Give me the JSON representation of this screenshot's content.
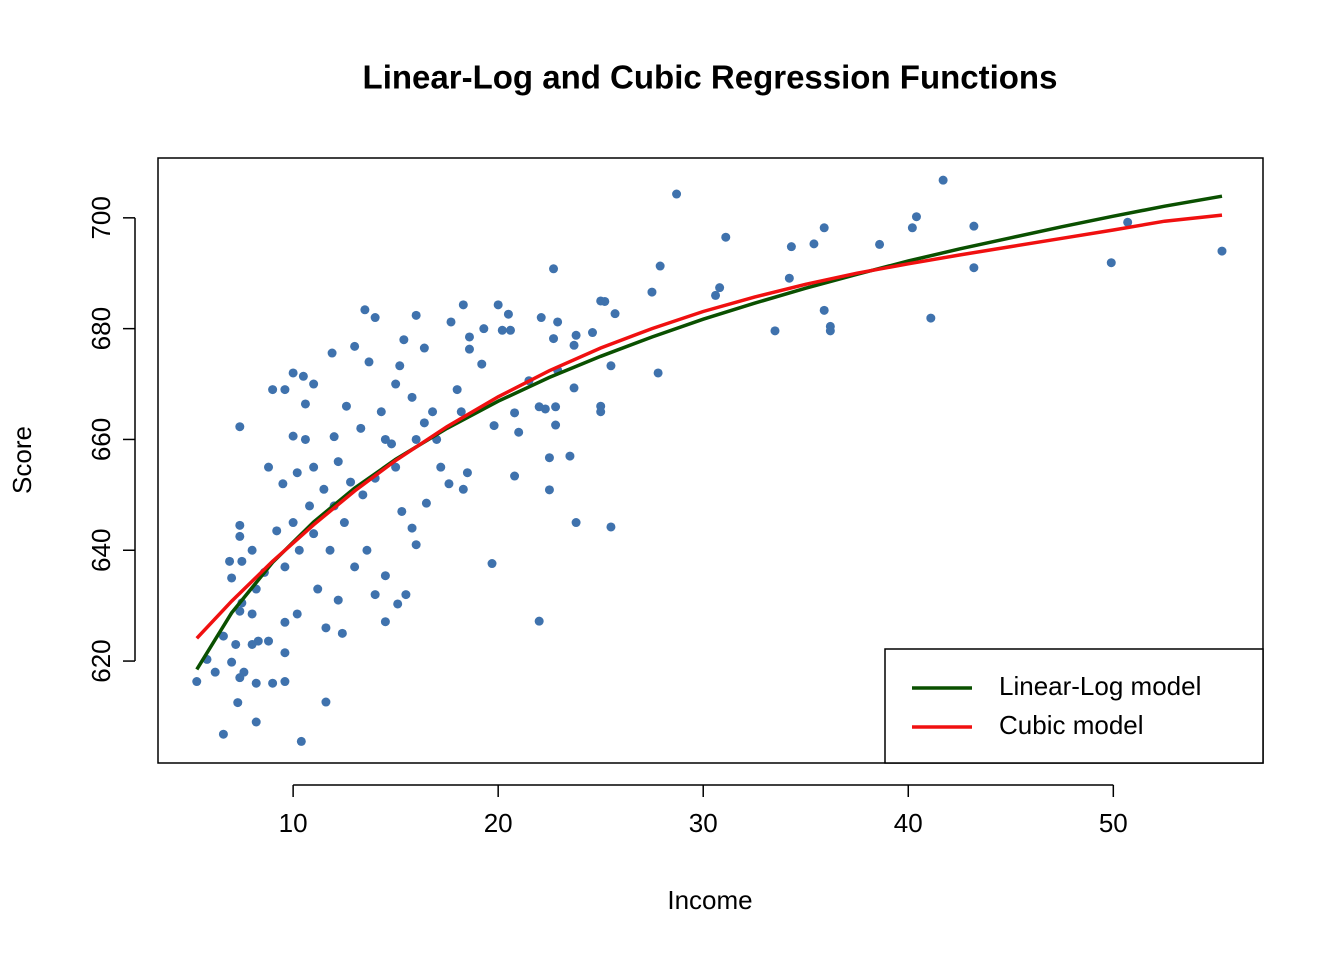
{
  "chart_data": {
    "type": "scatter",
    "title": "Linear-Log and Cubic Regression Functions",
    "xlabel": "Income",
    "ylabel": "Score",
    "color": "#3f72ad",
    "x": [
      28.7,
      41.7,
      40.4,
      40.2,
      43.2,
      43.2,
      50.7,
      49.9,
      55.3,
      41.1,
      38.6,
      35.9,
      35.4,
      34.3,
      34.2,
      35.9,
      36.2,
      36.2,
      33.5,
      31.1,
      30.8,
      30.6,
      27.9,
      27.5,
      27.8,
      25.7,
      25.2,
      25.0,
      24.6,
      23.8,
      23.7,
      23.7,
      25.5,
      25.0,
      25.0,
      25.5,
      23.8,
      23.5,
      22.8,
      22.5,
      22.5,
      22.0,
      22.7,
      22.1,
      22.7,
      22.9,
      22.0,
      22.3,
      22.8,
      22.9,
      21.5,
      21.0,
      20.8,
      20.8,
      19.7,
      20.0,
      20.2,
      20.5,
      20.6,
      19.3,
      19.8,
      18.3,
      17.7,
      18.6,
      18.6,
      19.2,
      18.0,
      18.2,
      18.3,
      18.5,
      17.6,
      16.8,
      17.0,
      16.4,
      16.0,
      16.4,
      15.4,
      15.8,
      15.2,
      14.8,
      15.0,
      15.3,
      15.8,
      16.0,
      15.5,
      15.1,
      14.5,
      14.5,
      14.0,
      13.5,
      13.7,
      13.0,
      12.6,
      13.3,
      12.2,
      12.5,
      12.0,
      11.8,
      11.6,
      11.6,
      12.4,
      11.2,
      11.0,
      11.0,
      11.0,
      11.9,
      10.5,
      10.0,
      9.6,
      9.0,
      10.6,
      10.4,
      10.0,
      10.2,
      10.0,
      10.3,
      9.6,
      9.5,
      9.2,
      8.8,
      8.6,
      8.0,
      8.2,
      8.0,
      8.3,
      8.8,
      9.0,
      9.6,
      9.6,
      10.2,
      8.2,
      8.2,
      7.6,
      7.3,
      7.4,
      6.6,
      6.6,
      6.2,
      5.8,
      5.3,
      7.0,
      7.2,
      7.4,
      7.0,
      7.5,
      7.4,
      7.4,
      7.4,
      8.0,
      6.9,
      7.5,
      9.6,
      12.2,
      13.0,
      13.6,
      14.0,
      14.5,
      14.0,
      13.4,
      12.8,
      14.3,
      15.0,
      16.5,
      17.2,
      16.0,
      12.0,
      11.5,
      10.8,
      10.6
    ],
    "values": [
      704.3,
      706.8,
      700.2,
      698.2,
      698.5,
      691.0,
      699.2,
      691.9,
      694.0,
      681.9,
      695.2,
      698.2,
      695.3,
      694.8,
      689.1,
      683.3,
      680.4,
      679.6,
      679.6,
      696.5,
      687.4,
      686.0,
      691.3,
      686.6,
      672.0,
      682.7,
      684.9,
      685.0,
      679.3,
      678.8,
      677.0,
      669.3,
      673.3,
      666.0,
      665.0,
      644.2,
      645.0,
      657.0,
      662.6,
      656.7,
      650.9,
      627.2,
      690.8,
      682.0,
      678.2,
      681.2,
      665.9,
      665.5,
      665.9,
      672.5,
      670.6,
      661.3,
      664.8,
      653.4,
      637.6,
      684.3,
      679.7,
      682.6,
      679.7,
      680.0,
      662.5,
      684.3,
      681.2,
      678.5,
      676.3,
      673.6,
      669.0,
      665.0,
      651.0,
      654.0,
      652.0,
      665.0,
      660.0,
      663.0,
      682.4,
      676.5,
      678.0,
      667.6,
      673.3,
      659.2,
      655.0,
      647.0,
      644.0,
      641.0,
      632.0,
      630.3,
      627.1,
      635.4,
      682.0,
      683.4,
      674.0,
      676.8,
      666.0,
      662.0,
      656.0,
      645.0,
      648.0,
      640.0,
      626.0,
      612.6,
      625.0,
      633.0,
      643.0,
      655.0,
      670.0,
      675.6,
      671.4,
      672.0,
      669.0,
      669.0,
      666.4,
      605.5,
      660.6,
      654.0,
      645.0,
      640.0,
      637.0,
      652.0,
      643.5,
      655.0,
      636.0,
      640.0,
      633.0,
      628.5,
      623.6,
      623.6,
      616.0,
      621.5,
      627.0,
      628.5,
      609.0,
      616.0,
      618.0,
      612.5,
      617.0,
      606.8,
      624.5,
      618.0,
      620.3,
      616.3,
      619.8,
      623.0,
      629.0,
      635.0,
      638.0,
      642.5,
      644.5,
      662.3,
      623.0,
      638.0,
      630.5,
      616.3,
      631.0,
      637.0,
      640.0,
      632.0,
      660.0,
      653.0,
      650.0,
      652.3,
      665.0,
      670.0,
      648.5,
      655.0,
      660.0,
      660.5,
      651.0,
      648.0,
      660.0
    ],
    "lines": [
      {
        "name": "Linear-Log model",
        "color": "#0a5000",
        "x": [
          5.3,
          7,
          9,
          11,
          13,
          15,
          17.5,
          20,
          22.5,
          25,
          27.5,
          30,
          32.5,
          35,
          37.5,
          40,
          42.5,
          45,
          47.5,
          50,
          52.5,
          55.3
        ],
        "values": [
          618.5,
          628.7,
          637.8,
          645.1,
          651.2,
          656.4,
          662.0,
          666.9,
          671.2,
          675.0,
          678.5,
          681.7,
          684.6,
          687.3,
          689.8,
          692.2,
          694.4,
          696.4,
          698.4,
          700.3,
          702.1,
          703.9
        ]
      },
      {
        "name": "Cubic model",
        "color": "#f01010",
        "x": [
          5.3,
          7,
          9,
          11,
          13,
          15,
          17.5,
          20,
          22.5,
          25,
          27.5,
          30,
          32.5,
          35,
          37.5,
          40,
          42.5,
          45,
          47.5,
          50,
          52.5,
          55.3
        ],
        "values": [
          624.1,
          630.8,
          638.0,
          644.6,
          650.7,
          656.2,
          662.3,
          667.7,
          672.4,
          676.5,
          680.0,
          683.1,
          685.7,
          688.0,
          690.0,
          691.7,
          693.3,
          694.8,
          696.3,
          697.8,
          699.4,
          700.5
        ]
      }
    ],
    "xlim": [
      3.41,
      57.3
    ],
    "ylim": [
      601.6,
      710.8
    ],
    "xticks": [
      10,
      20,
      30,
      40,
      50
    ],
    "yticks": [
      620,
      640,
      660,
      680,
      700
    ],
    "legend_position": "bottomright"
  }
}
